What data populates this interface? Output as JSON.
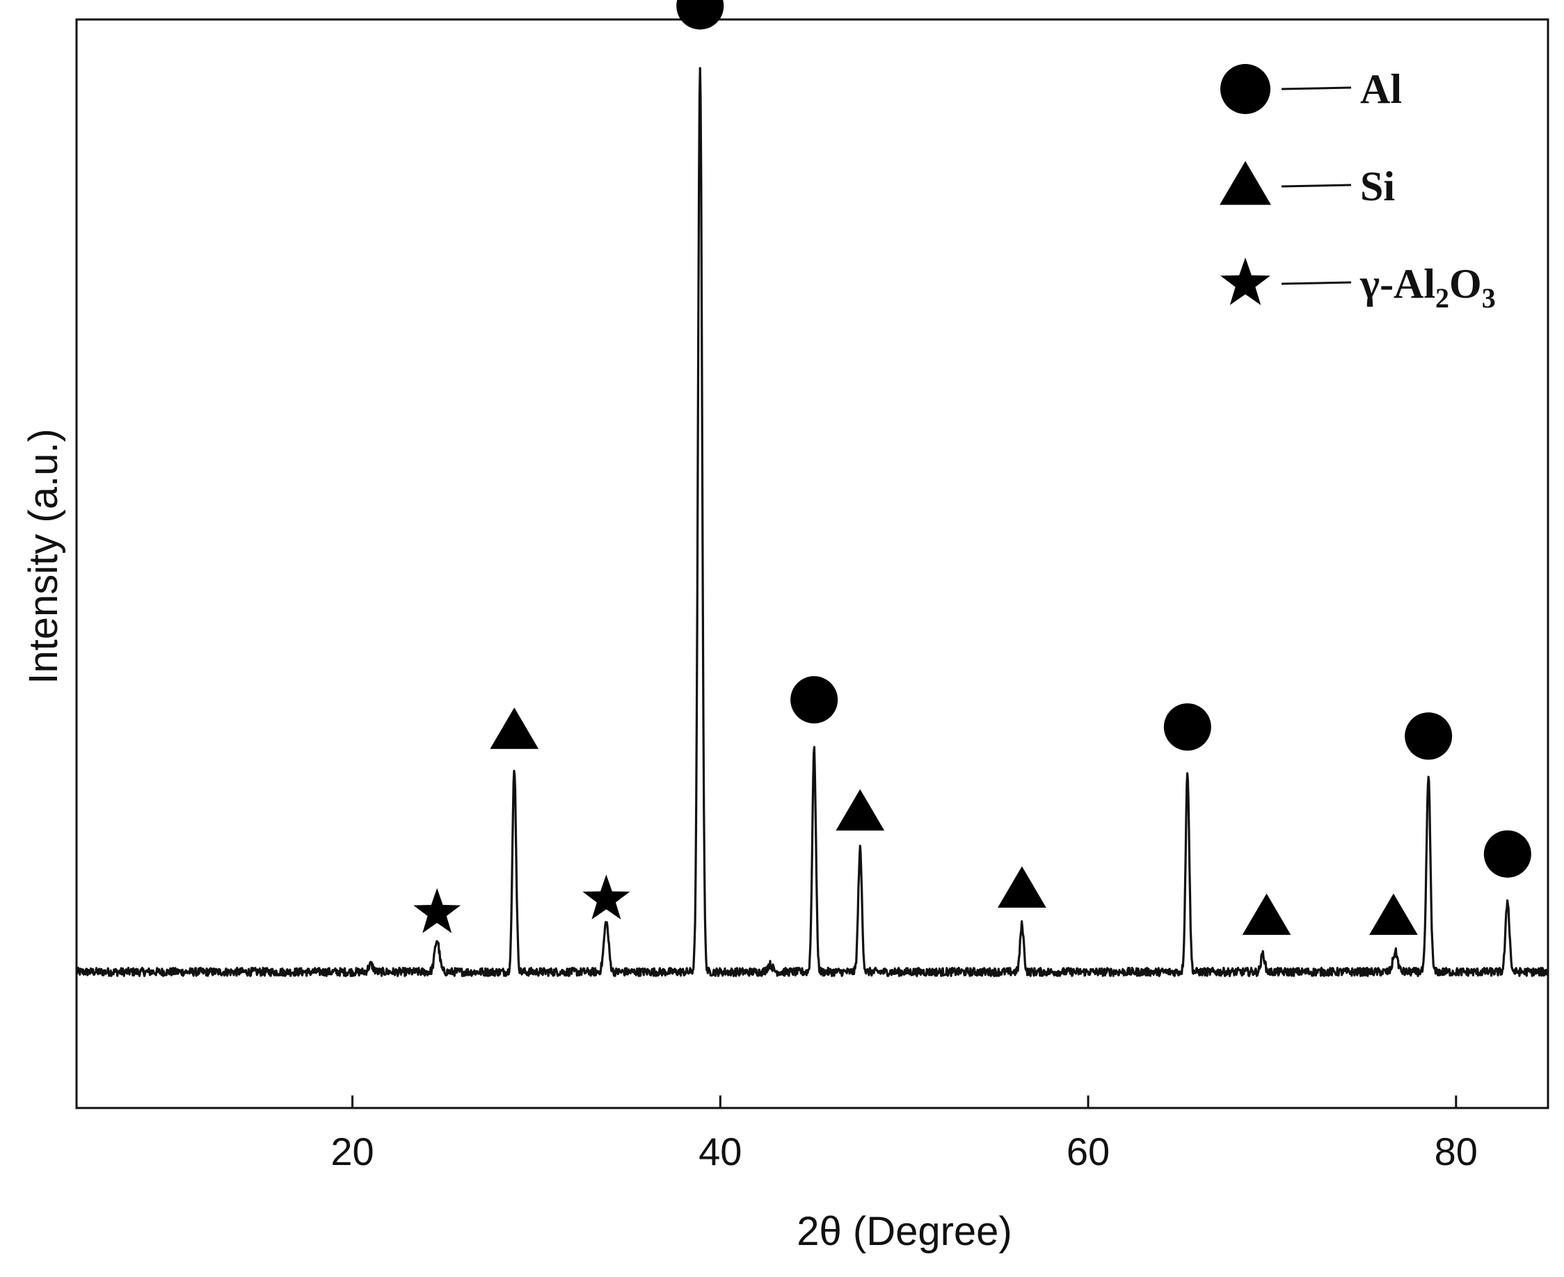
{
  "chart_data": {
    "type": "line",
    "xlabel": "2θ (Degree)",
    "ylabel": "Intensity (a.u.)",
    "xlim": [
      5,
      85
    ],
    "ylim": [
      -0.15,
      1.05
    ],
    "xticks": [
      20,
      40,
      60,
      80
    ],
    "xtick_labels": [
      "20",
      "40",
      "60",
      "80"
    ],
    "grid": false,
    "legend_position": "top-right",
    "series": [
      {
        "peaks": [
          {
            "x": 21.0,
            "h": 0.008,
            "w": 0.18
          },
          {
            "x": 24.6,
            "h": 0.035,
            "w": 0.18
          },
          {
            "x": 28.8,
            "h": 0.225,
            "w": 0.14
          },
          {
            "x": 33.8,
            "h": 0.055,
            "w": 0.18
          },
          {
            "x": 38.9,
            "h": 1.0,
            "w": 0.16
          },
          {
            "x": 42.7,
            "h": 0.008,
            "w": 0.2
          },
          {
            "x": 45.1,
            "h": 0.245,
            "w": 0.14
          },
          {
            "x": 47.6,
            "h": 0.135,
            "w": 0.14
          },
          {
            "x": 56.4,
            "h": 0.052,
            "w": 0.14
          },
          {
            "x": 65.4,
            "h": 0.22,
            "w": 0.14
          },
          {
            "x": 69.5,
            "h": 0.02,
            "w": 0.14
          },
          {
            "x": 76.7,
            "h": 0.022,
            "w": 0.18
          },
          {
            "x": 78.5,
            "h": 0.215,
            "w": 0.15
          },
          {
            "x": 82.8,
            "h": 0.078,
            "w": 0.15
          }
        ]
      }
    ],
    "markers": [
      {
        "shape": "star",
        "x": 24.6,
        "y": 0.065
      },
      {
        "shape": "triangle",
        "x": 28.8,
        "y": 0.265
      },
      {
        "shape": "star",
        "x": 33.8,
        "y": 0.08
      },
      {
        "shape": "circle",
        "x": 38.9,
        "y": 1.065
      },
      {
        "shape": "circle",
        "x": 45.1,
        "y": 0.3
      },
      {
        "shape": "triangle",
        "x": 47.6,
        "y": 0.175
      },
      {
        "shape": "triangle",
        "x": 56.4,
        "y": 0.09
      },
      {
        "shape": "circle",
        "x": 65.4,
        "y": 0.27
      },
      {
        "shape": "triangle",
        "x": 69.7,
        "y": 0.06
      },
      {
        "shape": "triangle",
        "x": 76.6,
        "y": 0.06
      },
      {
        "shape": "circle",
        "x": 78.5,
        "y": 0.26
      },
      {
        "shape": "circle",
        "x": 82.8,
        "y": 0.13
      }
    ],
    "legend": [
      {
        "shape": "circle",
        "label": "Al"
      },
      {
        "shape": "triangle",
        "label": "Si"
      },
      {
        "shape": "star",
        "label": "γ-Al",
        "sub1": "2",
        "mid": "O",
        "sub2": "3"
      }
    ],
    "line_color": "#111111",
    "marker_color": "#000000"
  }
}
